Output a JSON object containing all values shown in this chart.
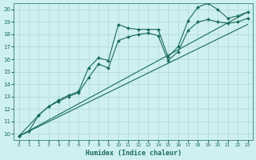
{
  "xlabel": "Humidex (Indice chaleur)",
  "bg_color": "#cff0f0",
  "grid_color": "#aad8d4",
  "line_color": "#1a6b5a",
  "xlim": [
    -0.5,
    23.5
  ],
  "ylim": [
    9.5,
    20.5
  ],
  "xticks": [
    0,
    1,
    2,
    3,
    4,
    5,
    6,
    7,
    8,
    9,
    10,
    11,
    12,
    13,
    14,
    15,
    16,
    17,
    18,
    19,
    20,
    21,
    22,
    23
  ],
  "yticks": [
    10,
    11,
    12,
    13,
    14,
    15,
    16,
    17,
    18,
    19,
    20
  ],
  "lines": [
    {
      "x": [
        0,
        1,
        2,
        3,
        4,
        5,
        6,
        7,
        8,
        9,
        10,
        11,
        12,
        13,
        14,
        15,
        16,
        17,
        18,
        19,
        20,
        21,
        22,
        23
      ],
      "y": [
        9.8,
        10.2,
        11.5,
        12.2,
        12.7,
        13.1,
        13.4,
        15.3,
        16.1,
        15.9,
        18.8,
        18.5,
        18.4,
        18.4,
        18.4,
        16.2,
        17.0,
        19.1,
        20.2,
        20.5,
        20.0,
        19.3,
        19.5,
        19.8
      ],
      "marker": true
    },
    {
      "x": [
        0,
        2,
        3,
        4,
        5,
        6,
        7,
        8,
        9,
        10,
        11,
        12,
        13,
        14,
        15,
        16,
        17,
        18,
        19,
        20,
        21,
        22,
        23
      ],
      "y": [
        9.8,
        11.5,
        12.2,
        12.6,
        13.0,
        13.3,
        14.5,
        15.6,
        15.3,
        17.5,
        17.8,
        18.0,
        18.1,
        17.9,
        15.9,
        16.6,
        18.3,
        19.0,
        19.2,
        19.0,
        18.9,
        19.0,
        19.3
      ],
      "marker": true
    },
    {
      "x": [
        0,
        23
      ],
      "y": [
        9.8,
        19.8
      ],
      "marker": false
    },
    {
      "x": [
        0,
        23
      ],
      "y": [
        9.8,
        18.8
      ],
      "marker": false
    }
  ]
}
